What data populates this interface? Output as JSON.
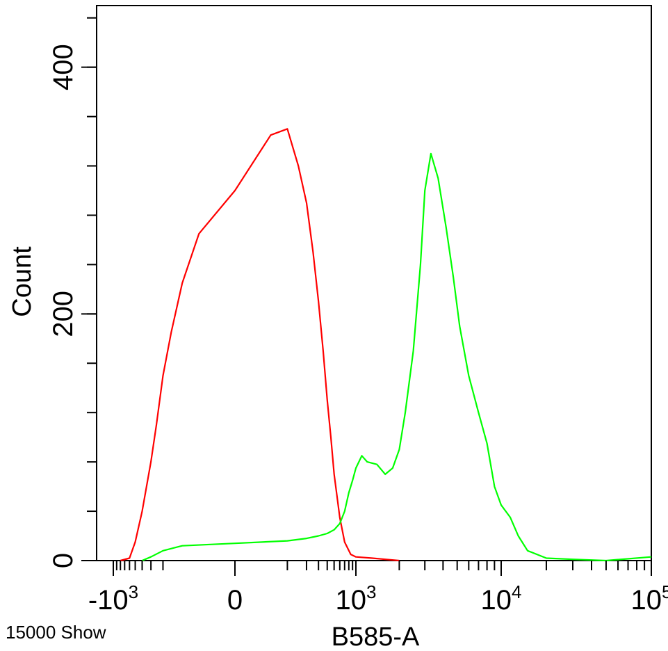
{
  "chart_data": {
    "type": "line",
    "title": "",
    "xlabel": "B585-A",
    "ylabel": "Count",
    "x_scale": "biexponential",
    "xlim": [
      -1000,
      100000
    ],
    "ylim": [
      0,
      450
    ],
    "grid": false,
    "legend": "none",
    "yticks": [
      {
        "value": 0,
        "label": "0"
      },
      {
        "value": 200,
        "label": "200"
      },
      {
        "value": 400,
        "label": "400"
      }
    ],
    "xticks": [
      {
        "value": -1000,
        "base": "-10",
        "exp": "3"
      },
      {
        "value": 0,
        "base": "0",
        "exp": ""
      },
      {
        "value": 1000,
        "base": "10",
        "exp": "3"
      },
      {
        "value": 10000,
        "base": "10",
        "exp": "4"
      },
      {
        "value": 100000,
        "base": "10",
        "exp": "5"
      }
    ],
    "footer_note": "15000 Show",
    "series": [
      {
        "color": "#ff0000",
        "x": [
          -800,
          -600,
          -500,
          -400,
          -300,
          -250,
          -200,
          -150,
          -100,
          -50,
          0,
          50,
          100,
          150,
          200,
          250,
          300,
          350,
          400,
          450,
          500,
          600,
          700,
          850,
          1000,
          1300,
          1600,
          2000
        ],
        "y": [
          0,
          2,
          15,
          40,
          80,
          110,
          150,
          185,
          225,
          265,
          300,
          345,
          350,
          320,
          290,
          250,
          210,
          170,
          130,
          100,
          70,
          35,
          15,
          5,
          3,
          2,
          1,
          0
        ]
      },
      {
        "color": "#00ff00",
        "x": [
          -400,
          -300,
          -200,
          -100,
          0,
          100,
          200,
          300,
          400,
          500,
          600,
          700,
          800,
          900,
          1000,
          1100,
          1200,
          1400,
          1600,
          1800,
          2000,
          2200,
          2500,
          2800,
          3000,
          3300,
          3700,
          4200,
          4700,
          5200,
          6000,
          7000,
          8000,
          9000,
          10000,
          11500,
          13000,
          15000,
          20000,
          30000,
          50000,
          100000
        ],
        "y": [
          0,
          3,
          8,
          12,
          14,
          16,
          18,
          20,
          22,
          25,
          30,
          40,
          55,
          65,
          75,
          85,
          80,
          78,
          70,
          75,
          90,
          120,
          170,
          240,
          300,
          330,
          310,
          270,
          230,
          190,
          150,
          120,
          95,
          60,
          45,
          35,
          20,
          8,
          2,
          1,
          0,
          3
        ]
      }
    ]
  }
}
